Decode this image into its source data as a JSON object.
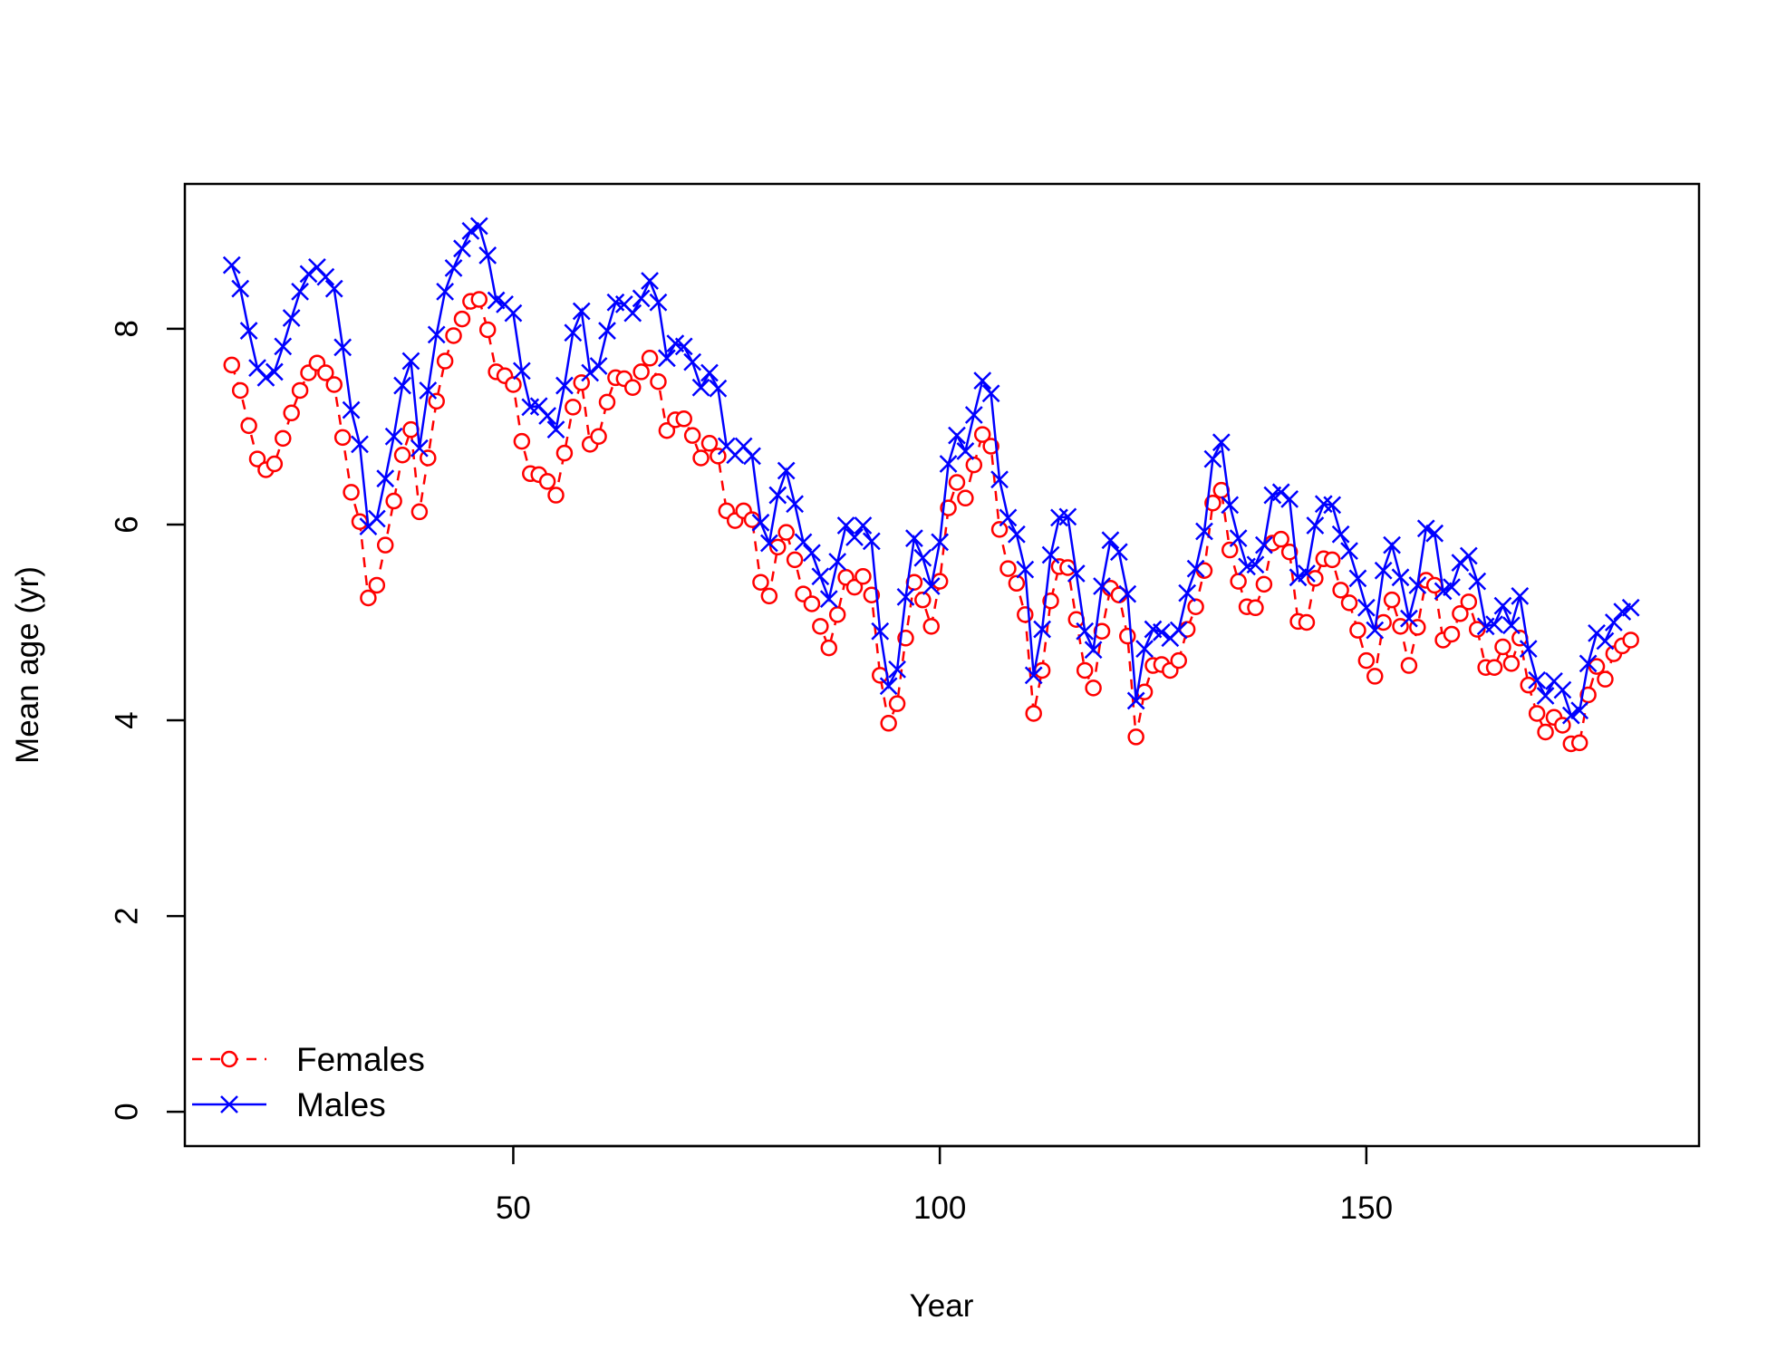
{
  "chart_data": {
    "type": "line",
    "xlabel": "Year",
    "ylabel": "Mean age (yr)",
    "xlim": [
      11.5,
      189
    ],
    "ylim": [
      -0.35,
      9.48
    ],
    "xticks": [
      50,
      100,
      150
    ],
    "yticks": [
      0,
      2,
      4,
      6,
      8
    ],
    "grid": false,
    "legend_position": "bottom-left",
    "x_start": 17,
    "series": [
      {
        "name": "Females",
        "color": "#ff0000",
        "line": "dashed",
        "marker": "circle",
        "values": [
          7.63,
          7.37,
          7.01,
          6.67,
          6.56,
          6.62,
          6.88,
          7.14,
          7.37,
          7.55,
          7.65,
          7.55,
          7.43,
          6.89,
          6.33,
          6.03,
          5.25,
          5.38,
          5.79,
          6.24,
          6.71,
          6.97,
          6.13,
          6.68,
          7.26,
          7.67,
          7.93,
          8.1,
          8.28,
          8.3,
          7.99,
          7.56,
          7.52,
          7.43,
          6.85,
          6.52,
          6.51,
          6.44,
          6.3,
          6.73,
          7.2,
          7.45,
          6.82,
          6.9,
          7.25,
          7.5,
          7.49,
          7.4,
          7.56,
          7.7,
          7.46,
          6.96,
          7.07,
          7.08,
          6.91,
          6.68,
          6.83,
          6.7,
          6.14,
          6.04,
          6.14,
          6.05,
          5.41,
          5.27,
          5.77,
          5.92,
          5.64,
          5.29,
          5.19,
          4.96,
          4.74,
          5.08,
          5.46,
          5.36,
          5.47,
          5.28,
          4.46,
          3.97,
          4.17,
          4.84,
          5.41,
          5.23,
          4.96,
          5.42,
          6.17,
          6.43,
          6.27,
          6.61,
          6.92,
          6.8,
          5.95,
          5.55,
          5.4,
          5.08,
          4.07,
          4.51,
          5.22,
          5.57,
          5.56,
          5.03,
          4.51,
          4.33,
          4.91,
          5.35,
          5.28,
          4.86,
          3.83,
          4.29,
          4.56,
          4.57,
          4.51,
          4.61,
          4.93,
          5.16,
          5.53,
          6.22,
          6.35,
          5.74,
          5.42,
          5.16,
          5.15,
          5.39,
          5.81,
          5.85,
          5.72,
          5.01,
          5.0,
          5.45,
          5.65,
          5.64,
          5.33,
          5.2,
          4.92,
          4.61,
          4.45,
          5.0,
          5.23,
          4.96,
          4.56,
          4.95,
          5.43,
          5.38,
          4.82,
          4.88,
          5.09,
          5.21,
          4.93,
          4.54,
          4.54,
          4.75,
          4.58,
          4.84,
          4.36,
          4.07,
          3.88,
          4.03,
          3.95,
          3.76,
          3.77,
          4.26,
          4.55,
          4.42,
          4.68,
          4.76,
          4.82
        ]
      },
      {
        "name": "Males",
        "color": "#0000ff",
        "line": "solid",
        "marker": "x",
        "values": [
          8.65,
          8.41,
          7.98,
          7.6,
          7.5,
          7.56,
          7.82,
          8.11,
          8.38,
          8.56,
          8.63,
          8.53,
          8.41,
          7.81,
          7.17,
          6.82,
          5.98,
          6.06,
          6.47,
          6.9,
          7.42,
          7.67,
          6.78,
          7.37,
          7.94,
          8.38,
          8.62,
          8.82,
          9.0,
          9.05,
          8.75,
          8.29,
          8.25,
          8.16,
          7.57,
          7.2,
          7.21,
          7.11,
          6.97,
          7.42,
          7.96,
          8.18,
          7.55,
          7.62,
          7.98,
          8.27,
          8.25,
          8.16,
          8.31,
          8.49,
          8.27,
          7.7,
          7.85,
          7.82,
          7.66,
          7.4,
          7.55,
          7.39,
          6.8,
          6.71,
          6.8,
          6.7,
          6.02,
          5.81,
          6.3,
          6.55,
          6.21,
          5.82,
          5.71,
          5.47,
          5.24,
          5.62,
          5.99,
          5.87,
          5.99,
          5.83,
          4.91,
          4.35,
          4.52,
          5.26,
          5.86,
          5.66,
          5.37,
          5.82,
          6.62,
          6.91,
          6.75,
          7.12,
          7.47,
          7.34,
          6.46,
          6.07,
          5.9,
          5.54,
          4.46,
          4.93,
          5.69,
          6.07,
          6.08,
          5.5,
          4.91,
          4.72,
          5.37,
          5.84,
          5.72,
          5.29,
          4.2,
          4.73,
          4.93,
          4.9,
          4.84,
          4.92,
          5.3,
          5.55,
          5.93,
          6.67,
          6.84,
          6.2,
          5.86,
          5.57,
          5.59,
          5.79,
          6.3,
          6.33,
          6.26,
          5.46,
          5.5,
          5.99,
          6.21,
          6.2,
          5.9,
          5.73,
          5.45,
          5.15,
          4.92,
          5.53,
          5.79,
          5.46,
          5.04,
          5.38,
          5.96,
          5.91,
          5.32,
          5.36,
          5.61,
          5.68,
          5.42,
          4.96,
          4.98,
          5.17,
          4.97,
          5.27,
          4.73,
          4.41,
          4.25,
          4.4,
          4.31,
          4.05,
          4.1,
          4.58,
          4.89,
          4.81,
          5.0,
          5.11,
          5.15
        ]
      }
    ]
  }
}
